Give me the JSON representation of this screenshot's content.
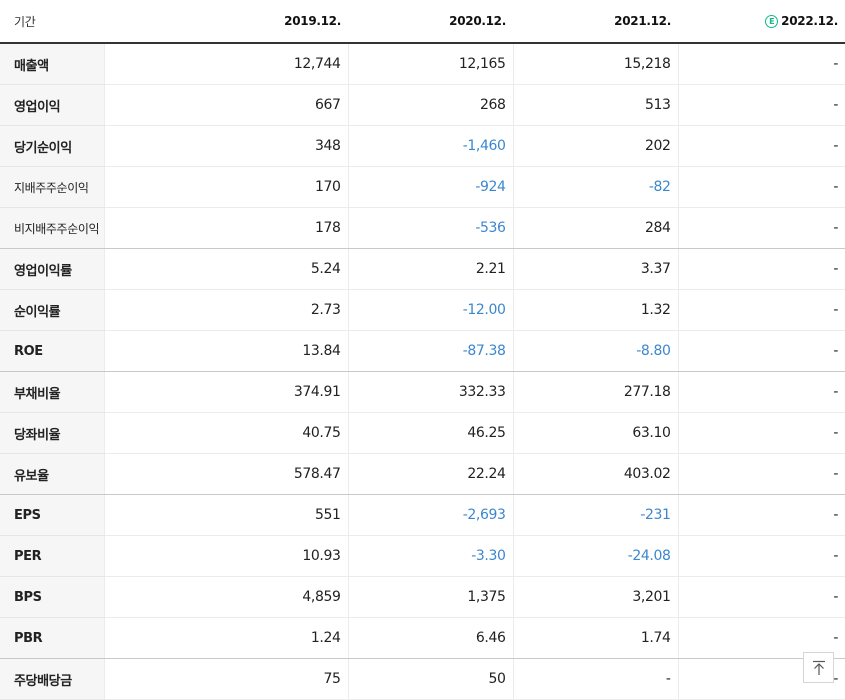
{
  "header": {
    "period_label": "기간",
    "columns": [
      "2019.12.",
      "2020.12.",
      "2021.12.",
      "2022.12."
    ],
    "estimate_icon_text": "E"
  },
  "rows": [
    {
      "label": "매출액",
      "values": [
        "12,744",
        "12,165",
        "15,218",
        "-"
      ]
    },
    {
      "label": "영업이익",
      "values": [
        "667",
        "268",
        "513",
        "-"
      ]
    },
    {
      "label": "당기순이익",
      "values": [
        "348",
        "-1,460",
        "202",
        "-"
      ]
    },
    {
      "label": "지배주주순이익",
      "values": [
        "170",
        "-924",
        "-82",
        "-"
      ]
    },
    {
      "label": "비지배주주순이익",
      "values": [
        "178",
        "-536",
        "284",
        "-"
      ]
    },
    {
      "label": "영업이익률",
      "values": [
        "5.24",
        "2.21",
        "3.37",
        "-"
      ]
    },
    {
      "label": "순이익률",
      "values": [
        "2.73",
        "-12.00",
        "1.32",
        "-"
      ]
    },
    {
      "label": "ROE",
      "values": [
        "13.84",
        "-87.38",
        "-8.80",
        "-"
      ]
    },
    {
      "label": "부채비율",
      "values": [
        "374.91",
        "332.33",
        "277.18",
        "-"
      ]
    },
    {
      "label": "당좌비율",
      "values": [
        "40.75",
        "46.25",
        "63.10",
        "-"
      ]
    },
    {
      "label": "유보율",
      "values": [
        "578.47",
        "22.24",
        "403.02",
        "-"
      ]
    },
    {
      "label": "EPS",
      "values": [
        "551",
        "-2,693",
        "-231",
        "-"
      ]
    },
    {
      "label": "PER",
      "values": [
        "10.93",
        "-3.30",
        "-24.08",
        "-"
      ]
    },
    {
      "label": "BPS",
      "values": [
        "4,859",
        "1,375",
        "3,201",
        "-"
      ]
    },
    {
      "label": "PBR",
      "values": [
        "1.24",
        "6.46",
        "1.74",
        "-"
      ]
    },
    {
      "label": "주당배당금",
      "values": [
        "75",
        "50",
        "-",
        "-"
      ]
    }
  ],
  "colors": {
    "negative": "#3b87cf",
    "estimate_icon": "#12b886",
    "header_rule": "#333333",
    "label_background": "#f6f6f6"
  },
  "icons": {
    "scroll_top": "arrow-up-to-line-icon"
  }
}
